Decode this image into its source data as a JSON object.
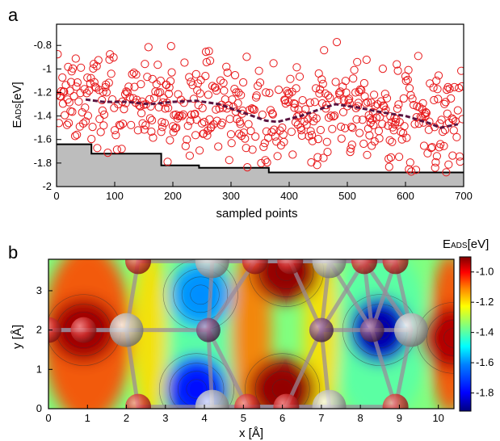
{
  "figure": {
    "panel_a_label": "a",
    "panel_b_label": "b"
  },
  "colors": {
    "scatter": "#e8191b",
    "moving_average": "#5a1440",
    "envelope_line": "#000000",
    "envelope_fill": "#bdbdbd",
    "colormap": [
      "#00007f",
      "#0000ff",
      "#007fff",
      "#00ffff",
      "#7fff7f",
      "#ffff00",
      "#ff7f00",
      "#ff0000",
      "#7f0000"
    ],
    "atom_red": "#d03232",
    "atom_grey": "#b8b8b8",
    "atom_purple": "#7a4a7a",
    "bond": "#9a8a9a"
  },
  "chart_data": [
    {
      "type": "scatter",
      "xlabel": "sampled points",
      "ylabel": "E_ADS[eV]",
      "ylabel_main": "E",
      "ylabel_sub": "ADS",
      "ylabel_unit": "[eV]",
      "xlim": [
        0,
        700
      ],
      "ylim": [
        -2.0,
        -0.62
      ],
      "xticks": [
        "0",
        "100",
        "200",
        "300",
        "400",
        "500",
        "600",
        "700"
      ],
      "yticks": [
        "-0.8",
        "-1",
        "-1.2",
        "-1.4",
        "-1.6",
        "-1.8",
        "-2"
      ],
      "xtick_values": [
        0,
        100,
        200,
        300,
        400,
        500,
        600,
        700
      ],
      "ytick_values": [
        -0.8,
        -1.0,
        -1.2,
        -1.4,
        -1.6,
        -1.8,
        -2.0
      ],
      "series": [
        {
          "kind": "scatter_open_circles",
          "n_points": 700,
          "mean": -1.32,
          "spread": 0.28,
          "min": -1.88,
          "max": -0.63
        },
        {
          "kind": "moving_average_dashed",
          "x": [
            50,
            80,
            120,
            160,
            200,
            240,
            280,
            320,
            360,
            380,
            420,
            460,
            480,
            520,
            560,
            600,
            640,
            660,
            690
          ],
          "y": [
            -1.26,
            -1.28,
            -1.28,
            -1.3,
            -1.28,
            -1.27,
            -1.3,
            -1.37,
            -1.44,
            -1.45,
            -1.4,
            -1.33,
            -1.3,
            -1.33,
            -1.37,
            -1.4,
            -1.46,
            -1.5,
            -1.47
          ]
        },
        {
          "kind": "running_minimum_step",
          "x": [
            0,
            60,
            60,
            180,
            180,
            245,
            245,
            365,
            365,
            700
          ],
          "y": [
            -1.64,
            -1.64,
            -1.72,
            -1.72,
            -1.82,
            -1.82,
            -1.84,
            -1.84,
            -1.88,
            -1.88
          ]
        }
      ]
    },
    {
      "type": "heatmap",
      "xlabel": "x [Å]",
      "ylabel": "y [Å]",
      "xlim": [
        0,
        10.4
      ],
      "ylim": [
        0,
        3.8
      ],
      "xticks": [
        "0",
        "1",
        "2",
        "3",
        "4",
        "5",
        "6",
        "7",
        "8",
        "9",
        "10"
      ],
      "yticks": [
        "0",
        "1",
        "2",
        "3"
      ],
      "xtick_values": [
        0,
        1,
        2,
        3,
        4,
        5,
        6,
        7,
        8,
        9,
        10
      ],
      "ytick_values": [
        0,
        1,
        2,
        3
      ],
      "colorbar": {
        "title": "E_ADS[eV]",
        "title_main": "E",
        "title_sub": "ADS",
        "title_unit": "[eV]",
        "range": [
          -1.92,
          -0.9
        ],
        "ticks": [
          "-1.0",
          "-1.2",
          "-1.4",
          "-1.6",
          "-1.8"
        ],
        "tick_values": [
          -1.0,
          -1.2,
          -1.4,
          -1.6,
          -1.8
        ]
      },
      "energy_features": [
        {
          "x": 0.9,
          "y": 2.0,
          "value": -0.93,
          "label": "high"
        },
        {
          "x": 10.4,
          "y": 1.8,
          "value": -0.95,
          "label": "high"
        },
        {
          "x": 6.1,
          "y": 3.5,
          "value": -0.92,
          "label": "high"
        },
        {
          "x": 6.0,
          "y": 0.5,
          "value": -0.92,
          "label": "high"
        },
        {
          "x": 8.5,
          "y": 2.0,
          "value": -1.88,
          "label": "low"
        },
        {
          "x": 3.8,
          "y": 0.5,
          "value": -1.78,
          "label": "low"
        },
        {
          "x": 3.9,
          "y": 2.9,
          "value": -1.65,
          "label": "low"
        }
      ],
      "atoms": [
        {
          "x": 0.0,
          "y": 2.0,
          "type": "red"
        },
        {
          "x": 0.9,
          "y": 2.0,
          "type": "red"
        },
        {
          "x": 2.0,
          "y": 2.0,
          "type": "grey"
        },
        {
          "x": 2.3,
          "y": 3.75,
          "type": "red"
        },
        {
          "x": 2.3,
          "y": 0.05,
          "type": "red"
        },
        {
          "x": 4.2,
          "y": 3.75,
          "type": "grey"
        },
        {
          "x": 4.2,
          "y": 0.05,
          "type": "grey"
        },
        {
          "x": 4.1,
          "y": 2.0,
          "type": "purple"
        },
        {
          "x": 5.3,
          "y": 3.75,
          "type": "red"
        },
        {
          "x": 6.2,
          "y": 3.75,
          "type": "red"
        },
        {
          "x": 5.1,
          "y": 0.05,
          "type": "red"
        },
        {
          "x": 6.1,
          "y": 0.05,
          "type": "red"
        },
        {
          "x": 7.2,
          "y": 3.75,
          "type": "grey"
        },
        {
          "x": 7.2,
          "y": 0.05,
          "type": "grey"
        },
        {
          "x": 7.0,
          "y": 2.0,
          "type": "purple"
        },
        {
          "x": 8.1,
          "y": 3.75,
          "type": "red"
        },
        {
          "x": 8.9,
          "y": 3.75,
          "type": "red"
        },
        {
          "x": 8.9,
          "y": 0.05,
          "type": "red"
        },
        {
          "x": 9.3,
          "y": 2.0,
          "type": "grey"
        },
        {
          "x": 8.3,
          "y": 2.0,
          "type": "purple"
        }
      ]
    }
  ]
}
